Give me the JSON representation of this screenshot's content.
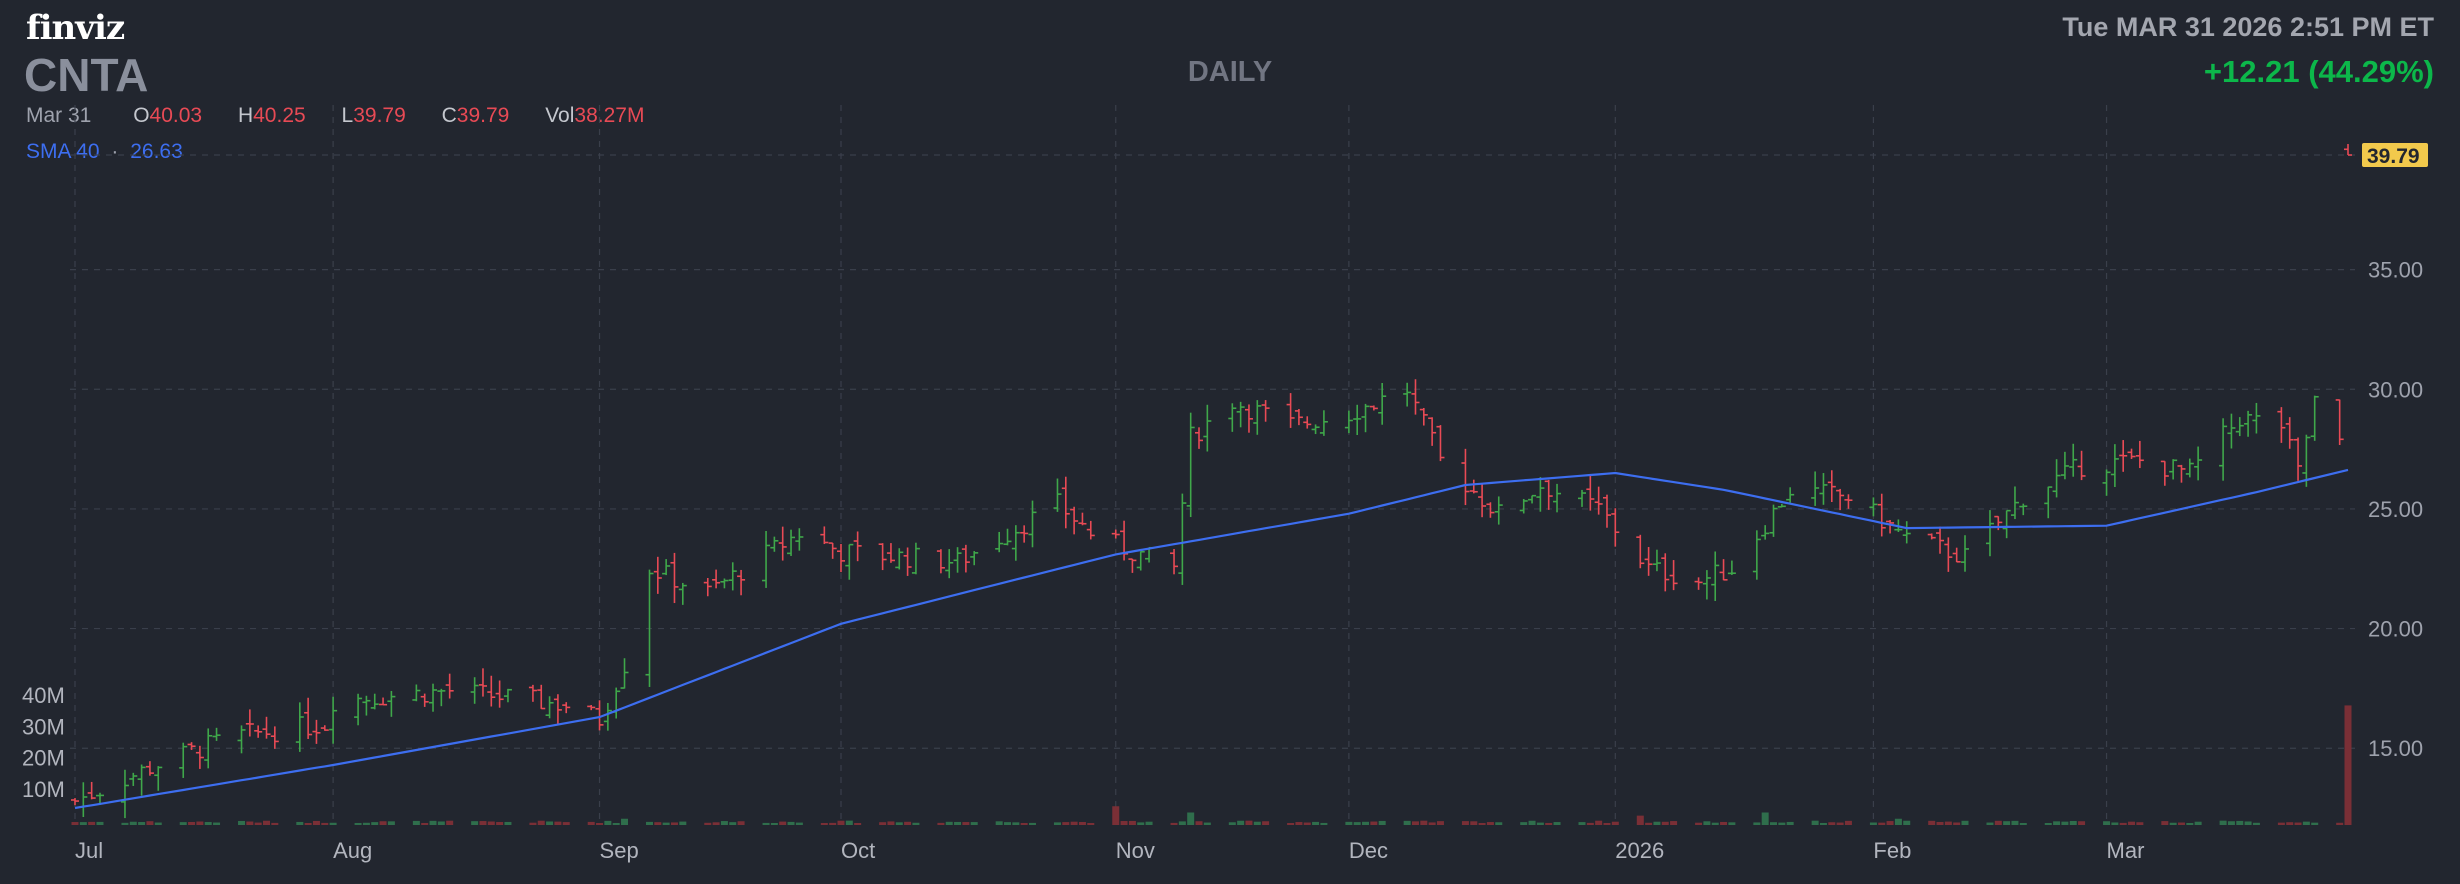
{
  "header": {
    "logo": "finviz",
    "ticker": "CNTA",
    "timeframe": "DAILY",
    "datetime": "Tue MAR 31 2026 2:51 PM ET",
    "change": "+12.21 (44.29%)"
  },
  "ohlc": {
    "date": "Mar 31",
    "open_label": "O",
    "open": "40.03",
    "high_label": "H",
    "high": "40.25",
    "low_label": "L",
    "low": "39.79",
    "close_label": "C",
    "close": "39.79",
    "vol_label": "Vol",
    "vol": "38.27M"
  },
  "sma": {
    "label": "SMA 40",
    "sep": "·",
    "value": "26.63"
  },
  "last_price_tag": "39.79",
  "colors": {
    "background": "#22262f",
    "up": "#3fa74a",
    "down": "#e84a55",
    "sma": "#3d6ef0",
    "price_tag": "#f2c94c",
    "change": "#0cb74a"
  },
  "chart_data": {
    "type": "bar",
    "title": "CNTA",
    "subtitle": "DAILY",
    "price_axis": {
      "ticks": [
        15,
        20,
        25,
        30,
        35
      ],
      "tick_labels": [
        "15.00",
        "20.00",
        "25.00",
        "30.00",
        "35.00"
      ],
      "range": [
        12,
        40
      ]
    },
    "volume_axis": {
      "ticks": [
        "10M",
        "20M",
        "30M",
        "40M"
      ]
    },
    "x_labels": [
      "Jul",
      "Aug",
      "Sep",
      "Oct",
      "Nov",
      "Dec",
      "2026",
      "Feb",
      "Mar"
    ],
    "legend": [
      "SMA 40"
    ],
    "grid": true,
    "price_series": {
      "name": "CNTA",
      "anchors": [
        [
          "2025-07-01",
          12.8
        ],
        [
          "2025-07-10",
          14.2
        ],
        [
          "2025-07-20",
          15.5
        ],
        [
          "2025-07-31",
          16.0
        ],
        [
          "2025-08-01",
          17.0
        ],
        [
          "2025-08-15",
          17.4
        ],
        [
          "2025-08-29",
          16.8
        ],
        [
          "2025-09-02",
          16.2
        ],
        [
          "2025-09-05",
          18.5
        ],
        [
          "2025-09-08",
          22.5
        ],
        [
          "2025-09-15",
          21.5
        ],
        [
          "2025-09-26",
          24.0
        ],
        [
          "2025-10-01",
          23.2
        ],
        [
          "2025-10-15",
          22.8
        ],
        [
          "2025-10-27",
          25.2
        ],
        [
          "2025-10-31",
          24.0
        ],
        [
          "2025-11-03",
          23.5
        ],
        [
          "2025-11-10",
          22.5
        ],
        [
          "2025-11-12",
          28.0
        ],
        [
          "2025-11-17",
          29.5
        ],
        [
          "2025-11-24",
          28.5
        ],
        [
          "2025-12-01",
          29.0
        ],
        [
          "2025-12-08",
          30.0
        ],
        [
          "2025-12-12",
          27.0
        ],
        [
          "2025-12-19",
          24.8
        ],
        [
          "2025-12-24",
          26.0
        ],
        [
          "2025-12-31",
          25.0
        ],
        [
          "2026-01-06",
          22.5
        ],
        [
          "2026-01-12",
          22.0
        ],
        [
          "2026-01-16",
          22.5
        ],
        [
          "2026-01-23",
          25.8
        ],
        [
          "2026-01-30",
          25.5
        ],
        [
          "2026-02-06",
          23.8
        ],
        [
          "2026-02-13",
          23.0
        ],
        [
          "2026-02-20",
          25.5
        ],
        [
          "2026-02-27",
          26.8
        ],
        [
          "2026-03-06",
          27.0
        ],
        [
          "2026-03-12",
          26.5
        ],
        [
          "2026-03-18",
          28.8
        ],
        [
          "2026-03-23",
          28.5
        ],
        [
          "2026-03-25",
          26.5
        ],
        [
          "2026-03-27",
          29.5
        ],
        [
          "2026-03-30",
          27.6
        ],
        [
          "2026-03-31",
          39.79
        ]
      ]
    },
    "sma_series": {
      "name": "SMA 40",
      "anchors": [
        [
          "2025-07-01",
          12.5
        ],
        [
          "2025-08-01",
          14.3
        ],
        [
          "2025-09-02",
          16.3
        ],
        [
          "2025-10-01",
          20.2
        ],
        [
          "2025-11-03",
          23.1
        ],
        [
          "2025-12-01",
          24.8
        ],
        [
          "2025-12-15",
          26.0
        ],
        [
          "2026-01-02",
          26.5
        ],
        [
          "2026-01-15",
          25.8
        ],
        [
          "2026-02-06",
          24.2
        ],
        [
          "2026-03-02",
          24.3
        ],
        [
          "2026-03-20",
          25.7
        ],
        [
          "2026-03-31",
          26.63
        ]
      ]
    },
    "volume_spikes": [
      [
        "2025-11-03",
        6
      ],
      [
        "2025-11-12",
        4
      ],
      [
        "2025-09-05",
        2
      ],
      [
        "2026-01-05",
        3
      ],
      [
        "2026-01-20",
        4
      ],
      [
        "2026-02-05",
        2
      ],
      [
        "2026-03-31",
        38.27
      ]
    ]
  }
}
